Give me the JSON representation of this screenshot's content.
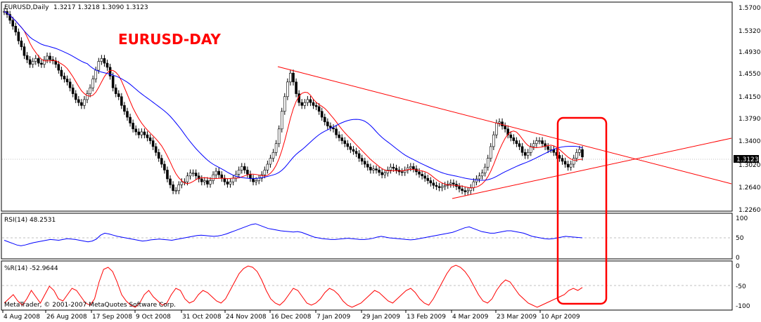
{
  "header": {
    "symbol": "EURUSD,Daily",
    "ohlc": "1.3217 1.3218 1.3090 1.3123",
    "annotation": "EURUSD-DAY"
  },
  "current_price_label": "1.3123",
  "copyright": "MetaTrader, © 2001-2007 MetaQuotes Software Corp.",
  "colors": {
    "candle": "#000000",
    "ma_fast": "#ff0000",
    "ma_slow": "#0000ff",
    "rsi": "#0000ff",
    "wpr": "#ff0000",
    "trendline": "#ff0000",
    "highlight_box": "#ff0000",
    "grid": "#c0c0c0"
  },
  "chart_data": [
    {
      "type": "candlestick",
      "title": "EURUSD,Daily",
      "price_ticks": [
        "1.5700",
        "1.5320",
        "1.4930",
        "1.4550",
        "1.4150",
        "1.3790",
        "1.3400",
        "1.3020",
        "1.2640",
        "1.2260"
      ],
      "ylim": [
        1.226,
        1.57
      ],
      "x_ticks": [
        "4 Aug 2008",
        "26 Aug 2008",
        "17 Sep 2008",
        "9 Oct 2008",
        "31 Oct 2008",
        "24 Nov 2008",
        "16 Dec 2008",
        "7 Jan 2009",
        "29 Jan 2009",
        "13 Feb 2009",
        "4 Mar 2009",
        "23 Mar 2009",
        "10 Apr 2009"
      ],
      "close_series": [
        1.56,
        1.555,
        1.545,
        1.535,
        1.525,
        1.51,
        1.5,
        1.485,
        1.478,
        1.47,
        1.475,
        1.48,
        1.472,
        1.47,
        1.478,
        1.484,
        1.478,
        1.476,
        1.47,
        1.46,
        1.45,
        1.445,
        1.44,
        1.43,
        1.42,
        1.41,
        1.405,
        1.4,
        1.41,
        1.42,
        1.43,
        1.445,
        1.46,
        1.475,
        1.48,
        1.472,
        1.465,
        1.45,
        1.43,
        1.42,
        1.415,
        1.4,
        1.39,
        1.38,
        1.37,
        1.36,
        1.355,
        1.35,
        1.355,
        1.35,
        1.345,
        1.34,
        1.33,
        1.32,
        1.31,
        1.3,
        1.29,
        1.275,
        1.265,
        1.255,
        1.255,
        1.265,
        1.27,
        1.27,
        1.28,
        1.285,
        1.285,
        1.28,
        1.275,
        1.27,
        1.272,
        1.266,
        1.272,
        1.282,
        1.288,
        1.282,
        1.276,
        1.27,
        1.266,
        1.27,
        1.276,
        1.283,
        1.29,
        1.296,
        1.29,
        1.283,
        1.276,
        1.27,
        1.272,
        1.276,
        1.282,
        1.29,
        1.3,
        1.31,
        1.32,
        1.335,
        1.36,
        1.39,
        1.415,
        1.44,
        1.455,
        1.44,
        1.42,
        1.405,
        1.4,
        1.405,
        1.41,
        1.405,
        1.4,
        1.398,
        1.39,
        1.38,
        1.372,
        1.365,
        1.362,
        1.36,
        1.35,
        1.345,
        1.34,
        1.335,
        1.33,
        1.325,
        1.322,
        1.318,
        1.31,
        1.305,
        1.3,
        1.295,
        1.29,
        1.292,
        1.29,
        1.286,
        1.282,
        1.285,
        1.29,
        1.295,
        1.293,
        1.29,
        1.287,
        1.286,
        1.29,
        1.294,
        1.296,
        1.292,
        1.287,
        1.283,
        1.28,
        1.276,
        1.272,
        1.268,
        1.264,
        1.262,
        1.26,
        1.262,
        1.264,
        1.266,
        1.268,
        1.266,
        1.262,
        1.258,
        1.255,
        1.253,
        1.255,
        1.26,
        1.27,
        1.275,
        1.28,
        1.285,
        1.295,
        1.31,
        1.33,
        1.35,
        1.37,
        1.372,
        1.365,
        1.36,
        1.35,
        1.345,
        1.34,
        1.335,
        1.33,
        1.32,
        1.315,
        1.32,
        1.33,
        1.335,
        1.34,
        1.34,
        1.335,
        1.33,
        1.325,
        1.325,
        1.32,
        1.315,
        1.31,
        1.305,
        1.3,
        1.295,
        1.3,
        1.31,
        1.32,
        1.325,
        1.3123
      ],
      "series": [
        {
          "values_ref": "close_series"
        },
        {
          "values_ref": "ma_fast"
        },
        {
          "values_ref": "ma_slow"
        }
      ],
      "annotations": [
        "EURUSD-DAY"
      ]
    },
    {
      "type": "line",
      "title": "RSI(14) 48.2531",
      "y_ticks": [
        "100",
        "50",
        "0"
      ],
      "ylim": [
        0,
        100
      ],
      "level_lines": [
        50
      ],
      "values": [
        42,
        38,
        34,
        30,
        28,
        30,
        33,
        36,
        38,
        40,
        42,
        44,
        43,
        42,
        44,
        46,
        45,
        44,
        42,
        40,
        38,
        40,
        45,
        55,
        60,
        58,
        55,
        52,
        50,
        48,
        46,
        44,
        42,
        40,
        41,
        43,
        44,
        45,
        44,
        43,
        42,
        44,
        46,
        48,
        50,
        52,
        54,
        55,
        54,
        53,
        52,
        53,
        55,
        58,
        62,
        66,
        70,
        74,
        78,
        82,
        84,
        80,
        76,
        72,
        70,
        68,
        66,
        65,
        64,
        63,
        64,
        62,
        58,
        54,
        50,
        48,
        46,
        45,
        44,
        44,
        45,
        46,
        47,
        46,
        45,
        44,
        44,
        45,
        47,
        50,
        52,
        50,
        48,
        47,
        46,
        45,
        44,
        43,
        44,
        46,
        48,
        50,
        52,
        54,
        56,
        58,
        60,
        62,
        66,
        70,
        74,
        76,
        72,
        68,
        64,
        62,
        60,
        60,
        62,
        64,
        66,
        66,
        64,
        62,
        60,
        56,
        52,
        50,
        48,
        46,
        45,
        46,
        48,
        50,
        52,
        51,
        50,
        49,
        48.2531
      ]
    },
    {
      "type": "line",
      "title": "%R(14) -52.9644",
      "y_ticks": [
        "0",
        "-50",
        "-100"
      ],
      "ylim": [
        -100,
        0
      ],
      "level_lines": [
        -50
      ],
      "values": [
        -90,
        -80,
        -70,
        -85,
        -95,
        -80,
        -60,
        -75,
        -90,
        -70,
        -50,
        -60,
        -80,
        -85,
        -70,
        -55,
        -60,
        -75,
        -90,
        -95,
        -80,
        -40,
        -10,
        -5,
        -15,
        -40,
        -70,
        -85,
        -95,
        -100,
        -90,
        -70,
        -60,
        -75,
        -85,
        -95,
        -90,
        -70,
        -55,
        -60,
        -80,
        -90,
        -85,
        -70,
        -60,
        -65,
        -75,
        -85,
        -90,
        -80,
        -60,
        -40,
        -20,
        -8,
        -2,
        -5,
        -15,
        -35,
        -60,
        -80,
        -90,
        -95,
        -85,
        -70,
        -55,
        -60,
        -75,
        -90,
        -95,
        -90,
        -80,
        -65,
        -55,
        -60,
        -70,
        -85,
        -95,
        -100,
        -95,
        -90,
        -80,
        -70,
        -60,
        -65,
        -75,
        -85,
        -90,
        -80,
        -70,
        -60,
        -55,
        -65,
        -80,
        -90,
        -95,
        -80,
        -60,
        -40,
        -20,
        -5,
        0,
        -5,
        -15,
        -30,
        -50,
        -70,
        -85,
        -90,
        -80,
        -60,
        -45,
        -35,
        -40,
        -55,
        -70,
        -80,
        -90,
        -95,
        -100,
        -95,
        -90,
        -85,
        -80,
        -75,
        -70,
        -60,
        -55,
        -60,
        -52.9644
      ]
    }
  ]
}
